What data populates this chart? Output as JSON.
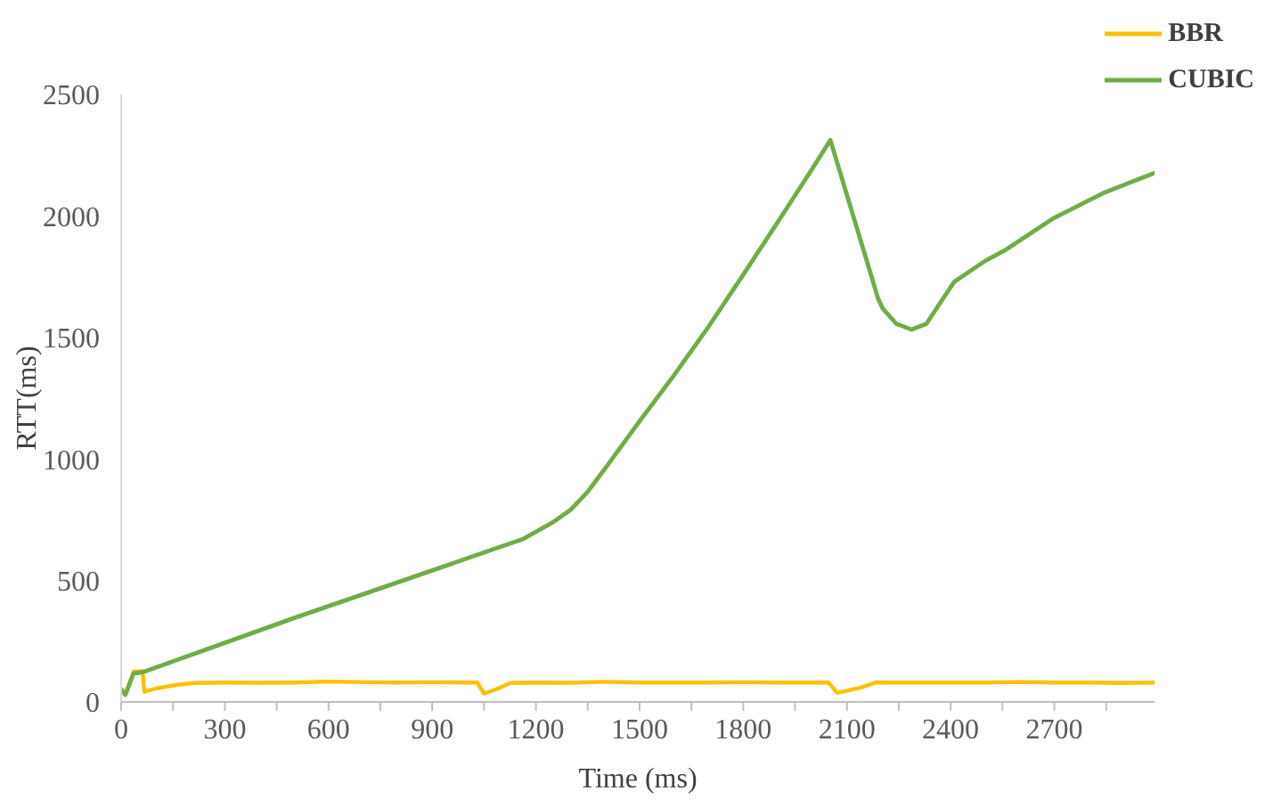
{
  "chart_data": {
    "type": "line",
    "xlabel": "Time (ms)",
    "ylabel": "RTT(ms)",
    "xlim": [
      0,
      2990
    ],
    "ylim": [
      0,
      2500
    ],
    "xticks": [
      0,
      {
        "value": 150,
        "label": null
      },
      300,
      {
        "value": 450,
        "label": null
      },
      600,
      {
        "value": 750,
        "label": null
      },
      900,
      {
        "value": 1050,
        "label": null
      },
      1200,
      {
        "value": 1350,
        "label": null
      },
      1500,
      {
        "value": 1650,
        "label": null
      },
      1800,
      {
        "value": 1950,
        "label": null
      },
      2100,
      {
        "value": 2250,
        "label": null
      },
      2400,
      {
        "value": 2550,
        "label": null
      },
      2700,
      {
        "value": 2850,
        "label": null
      }
    ],
    "yticks": [
      0,
      500,
      1000,
      1500,
      2000,
      2500
    ],
    "grid": false,
    "legend": "top right",
    "marker": "none",
    "line_style": "solid",
    "series": [
      {
        "name": "BBR",
        "color": "#ffc000",
        "x": [
          0,
          12,
          36,
          62,
          67,
          100,
          165,
          216,
          300,
          400,
          500,
          600,
          700,
          800,
          900,
          1000,
          1030,
          1050,
          1090,
          1127,
          1200,
          1300,
          1400,
          1500,
          1600,
          1700,
          1800,
          1900,
          2000,
          2046,
          2072,
          2141,
          2184,
          2300,
          2400,
          2500,
          2600,
          2700,
          2800,
          2900,
          2990
        ],
        "values": [
          53,
          29,
          125,
          127,
          42,
          55,
          71,
          78,
          80,
          79,
          80,
          84,
          81,
          80,
          81,
          80,
          80,
          34,
          55,
          78,
          80,
          79,
          83,
          80,
          80,
          80,
          81,
          80,
          80,
          80,
          37,
          59,
          80,
          80,
          80,
          80,
          82,
          80,
          80,
          78,
          80
        ]
      },
      {
        "name": "CUBIC",
        "color": "#70ad47",
        "x": [
          0,
          12,
          36,
          62,
          500,
          1000,
          1100,
          1161,
          1200,
          1250,
          1300,
          1350,
          1400,
          1500,
          1600,
          1700,
          1797,
          1900,
          2000,
          2052,
          2163,
          2190,
          2204,
          2243,
          2287,
          2330,
          2381,
          2410,
          2500,
          2561,
          2696,
          2845,
          2990
        ],
        "values": [
          53,
          29,
          117,
          122,
          345,
          590,
          640,
          669,
          700,
          740,
          790,
          865,
          960,
          1155,
          1345,
          1545,
          1752,
          1975,
          2195,
          2312,
          1789,
          1660,
          1618,
          1556,
          1532,
          1556,
          1666,
          1728,
          1815,
          1862,
          1989,
          2096,
          2177
        ]
      }
    ]
  }
}
